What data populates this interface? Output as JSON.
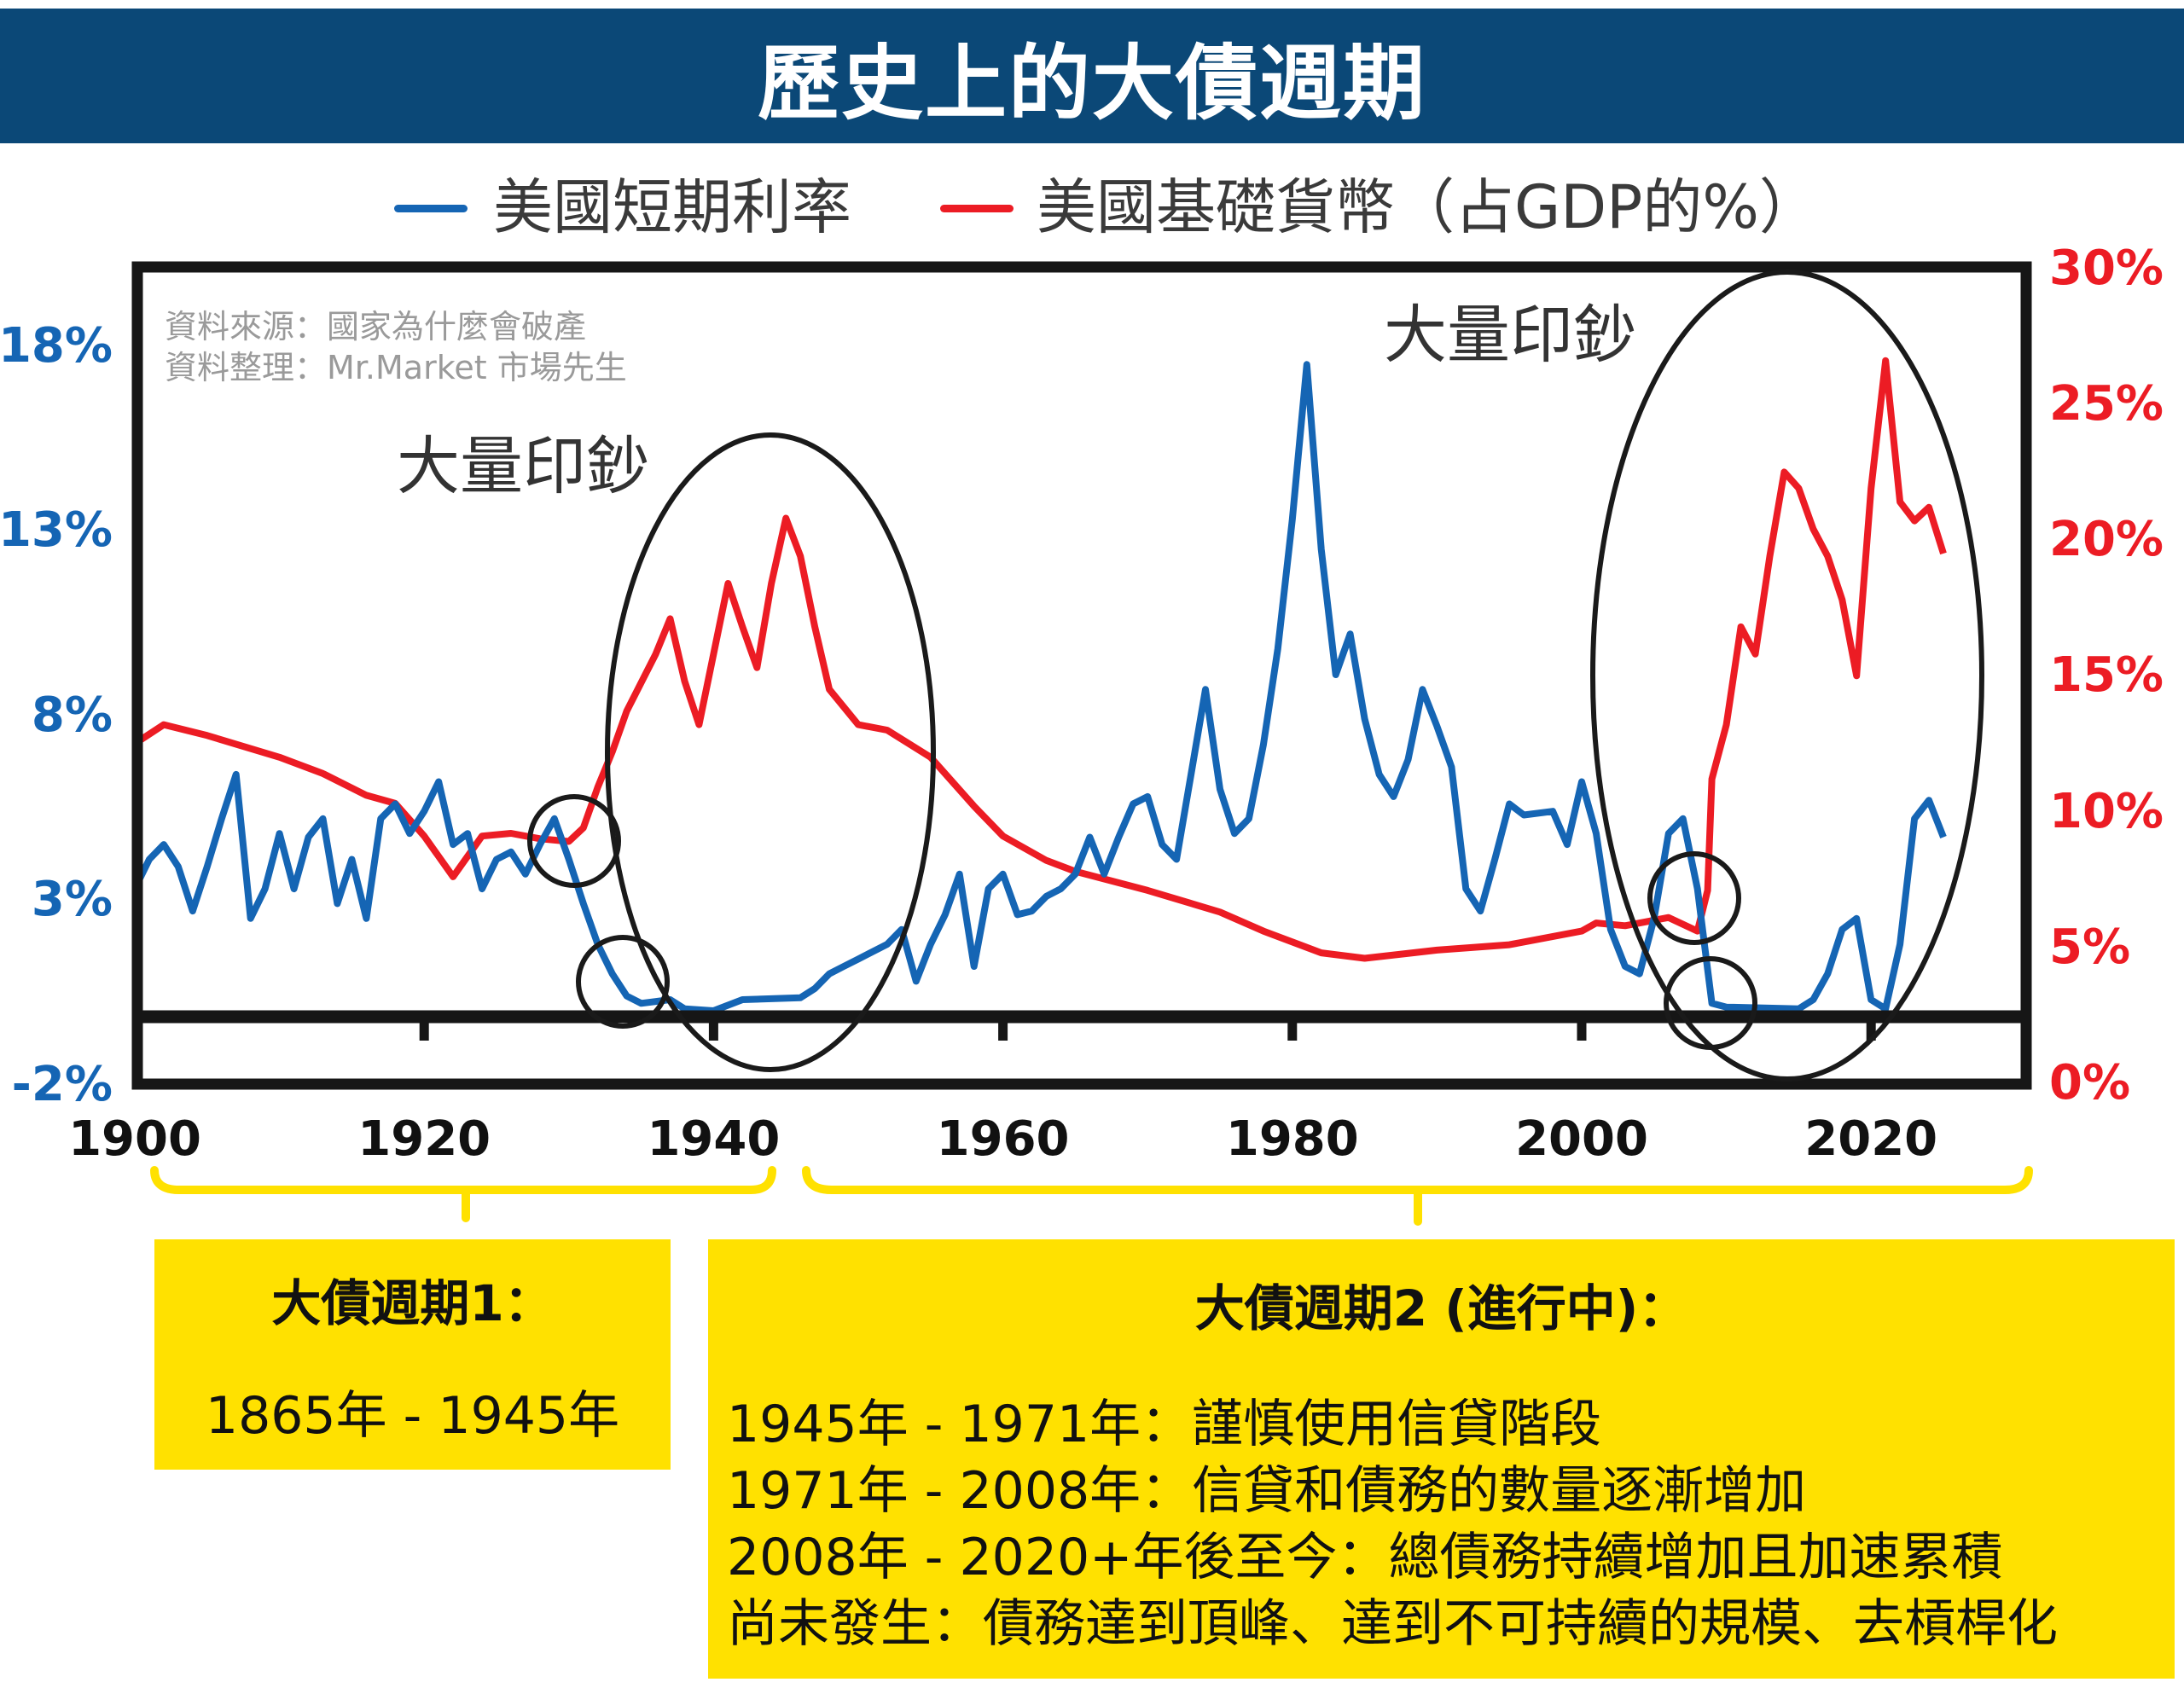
{
  "title": "歷史上的大債週期",
  "colors": {
    "title_bar": "#0b4877",
    "short_rate": "#1565b4",
    "base_money": "#ec1c24",
    "cycle_box": "#ffe100"
  },
  "source": {
    "line1": "資料來源：國家為什麼會破產",
    "line2": "資料整理：Mr.Market 市場先生"
  },
  "annotations": {
    "printing_money_1": "大量印鈔",
    "printing_money_2": "大量印鈔"
  },
  "cycles": {
    "cycle1": {
      "title": "大債週期1：",
      "period": "1865年 - 1945年"
    },
    "cycle2": {
      "title": "大債週期2 (進行中)：",
      "lines": [
        "1945年 - 1971年：謹慎使用信貸階段",
        "1971年 - 2008年：信貸和債務的數量逐漸增加",
        "2008年 - 2020+年後至今：總債務持續增加且加速累積",
        "尚未發生：債務達到頂峰、達到不可持續的規模、去槓桿化"
      ]
    }
  },
  "chart_data": {
    "type": "line",
    "title": "",
    "legend": {
      "placement": "top",
      "entries": [
        "美國短期利率",
        "美國基礎貨幣（占GDP的%）"
      ]
    },
    "x_ticks": [
      "1900",
      "1920",
      "1940",
      "1960",
      "1980",
      "2000",
      "2020"
    ],
    "xlim": [
      1900,
      2030
    ],
    "y_left": {
      "ticks": [
        "18%",
        "13%",
        "8%",
        "3%",
        "-2%"
      ],
      "lim": [
        -2,
        19
      ]
    },
    "y_right": {
      "ticks": [
        "30%",
        "25%",
        "20%",
        "15%",
        "10%",
        "5%",
        "0%"
      ],
      "lim": [
        0,
        30
      ]
    },
    "grid": false,
    "series": [
      {
        "name": "美國短期利率",
        "axis": "left",
        "color": "#1565b4",
        "x": [
          1900,
          1901,
          1902,
          1903,
          1904,
          1905,
          1906,
          1907,
          1908,
          1909,
          1910,
          1911,
          1912,
          1913,
          1914,
          1915,
          1916,
          1917,
          1918,
          1919,
          1920,
          1921,
          1922,
          1923,
          1924,
          1925,
          1926,
          1927,
          1928,
          1929,
          1930,
          1931,
          1932,
          1933,
          1934,
          1935,
          1937,
          1938,
          1940,
          1942,
          1946,
          1947,
          1948,
          1949,
          1950,
          1952,
          1953,
          1954,
          1955,
          1956,
          1957,
          1958,
          1959,
          1960,
          1961,
          1962,
          1963,
          1964,
          1965,
          1966,
          1967,
          1968,
          1969,
          1970,
          1971,
          1972,
          1973,
          1974,
          1975,
          1976,
          1977,
          1978,
          1979,
          1980,
          1981,
          1982,
          1983,
          1984,
          1985,
          1986,
          1987,
          1988,
          1989,
          1990,
          1991,
          1992,
          1993,
          1994,
          1995,
          1996,
          1998,
          1999,
          2000,
          2001,
          2002,
          2003,
          2004,
          2005,
          2006,
          2007,
          2008,
          2009,
          2010,
          2015,
          2016,
          2017,
          2018,
          2019,
          2020,
          2021,
          2022,
          2023,
          2024,
          2025
        ],
        "y": [
          3.3,
          4.1,
          4.5,
          3.9,
          2.7,
          3.9,
          5.2,
          6.4,
          2.5,
          3.3,
          4.8,
          3.3,
          4.7,
          5.2,
          2.9,
          4.1,
          2.5,
          5.2,
          5.6,
          4.8,
          5.4,
          6.2,
          4.5,
          4.8,
          3.3,
          4.1,
          4.3,
          3.7,
          4.5,
          5.2,
          4.1,
          2.9,
          1.8,
          1.0,
          0.4,
          0.2,
          0.3,
          0.05,
          0.0,
          0.3,
          0.35,
          0.6,
          1.0,
          1.2,
          1.4,
          1.8,
          2.2,
          0.8,
          1.8,
          2.6,
          3.7,
          1.2,
          3.3,
          3.7,
          2.6,
          2.7,
          3.1,
          3.3,
          3.7,
          4.7,
          3.7,
          4.7,
          5.6,
          5.8,
          4.5,
          4.1,
          6.4,
          8.7,
          6.0,
          4.8,
          5.2,
          7.2,
          9.8,
          13.3,
          17.5,
          12.5,
          9.1,
          10.2,
          7.9,
          6.4,
          5.8,
          6.8,
          8.7,
          7.7,
          6.6,
          3.3,
          2.7,
          4.1,
          5.6,
          5.3,
          5.4,
          4.5,
          6.2,
          4.8,
          2.2,
          1.2,
          1.0,
          2.5,
          4.8,
          5.2,
          3.3,
          0.2,
          0.1,
          0.05,
          0.3,
          1.0,
          2.2,
          2.5,
          0.3,
          0.05,
          1.8,
          5.2,
          5.7,
          4.7
        ]
      },
      {
        "name": "美國基礎貨幣（占GDP的%）",
        "axis": "right",
        "color": "#ec1c24",
        "x": [
          1900,
          1902,
          1905,
          1910,
          1913,
          1916,
          1918,
          1920,
          1922,
          1924,
          1926,
          1928,
          1930,
          1931,
          1932,
          1933,
          1934,
          1936,
          1937,
          1938,
          1939,
          1940,
          1941,
          1942,
          1943,
          1944,
          1945,
          1946,
          1947,
          1948,
          1950,
          1952,
          1955,
          1958,
          1960,
          1963,
          1965,
          1970,
          1975,
          1978,
          1982,
          1985,
          1990,
          1995,
          2000,
          2001,
          2003,
          2006,
          2008,
          2008.7,
          2009,
          2010,
          2011,
          2012,
          2013,
          2014,
          2015,
          2016,
          2017,
          2018,
          2019,
          2020,
          2021,
          2022,
          2023,
          2024,
          2025
        ],
        "y": [
          12.5,
          13.2,
          12.8,
          12.0,
          11.4,
          10.6,
          10.3,
          9.1,
          7.6,
          9.1,
          9.2,
          9.0,
          8.9,
          9.4,
          10.9,
          12.2,
          13.7,
          15.8,
          17.1,
          14.8,
          13.2,
          15.8,
          18.4,
          16.8,
          15.3,
          18.4,
          20.8,
          19.4,
          16.8,
          14.5,
          13.2,
          13.0,
          12.0,
          10.2,
          9.1,
          8.2,
          7.8,
          7.1,
          6.3,
          5.6,
          4.8,
          4.6,
          4.9,
          5.1,
          5.6,
          5.9,
          5.8,
          6.1,
          5.6,
          7.1,
          11.2,
          13.2,
          16.8,
          15.8,
          19.4,
          22.5,
          21.9,
          20.4,
          19.4,
          17.8,
          15.0,
          21.9,
          26.6,
          21.4,
          20.7,
          21.2,
          19.5
        ]
      }
    ]
  }
}
